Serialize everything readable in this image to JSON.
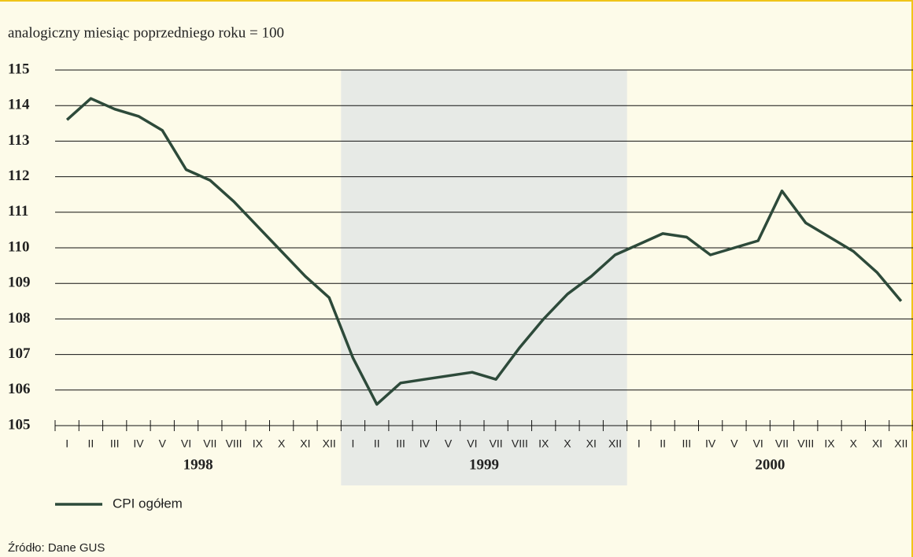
{
  "chart_data": {
    "type": "line",
    "ylabel": "analogiczny miesiąc poprzedniego roku = 100",
    "categories": [
      "I",
      "II",
      "III",
      "IV",
      "V",
      "VI",
      "VII",
      "VIII",
      "IX",
      "X",
      "XI",
      "XII",
      "I",
      "II",
      "III",
      "IV",
      "V",
      "VI",
      "VII",
      "VIII",
      "IX",
      "X",
      "XI",
      "XII",
      "I",
      "II",
      "III",
      "IV",
      "V",
      "VI",
      "VII",
      "VIII",
      "IX",
      "X",
      "XI",
      "XII"
    ],
    "groups": [
      {
        "name": "1998",
        "shaded": false
      },
      {
        "name": "1999",
        "shaded": true
      },
      {
        "name": "2000",
        "shaded": false
      }
    ],
    "series": [
      {
        "name": "CPI ogółem",
        "color": "#2d4a3a",
        "values": [
          113.6,
          114.2,
          113.9,
          113.7,
          113.3,
          112.2,
          111.9,
          111.3,
          110.6,
          109.9,
          109.2,
          108.6,
          106.9,
          105.6,
          106.2,
          106.3,
          106.4,
          106.5,
          106.3,
          107.2,
          108.0,
          108.7,
          109.2,
          109.8,
          110.1,
          110.4,
          110.3,
          109.8,
          110.0,
          110.2,
          111.6,
          110.7,
          110.3,
          109.9,
          109.3,
          108.5
        ]
      }
    ],
    "ylim": [
      105,
      115
    ],
    "yticks": [
      105,
      106,
      107,
      108,
      109,
      110,
      111,
      112,
      113,
      114,
      115
    ],
    "grid": true,
    "source": "Źródło: Dane GUS"
  }
}
